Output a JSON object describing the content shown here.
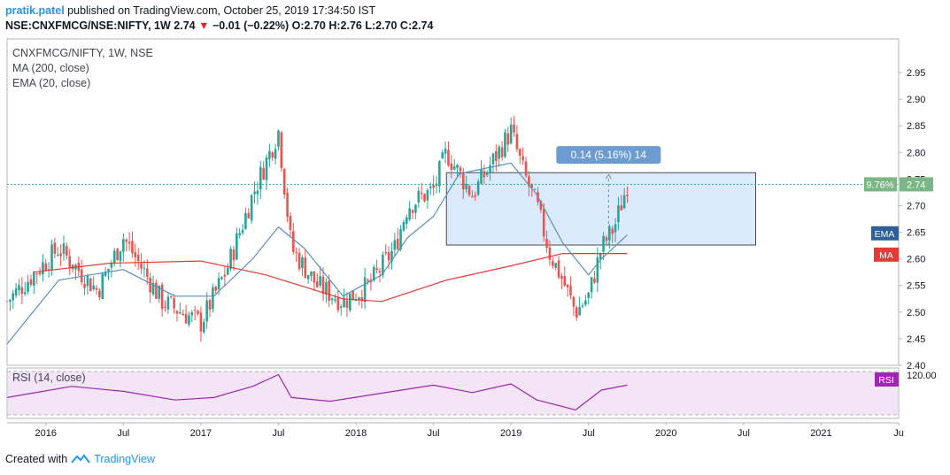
{
  "header": {
    "user": "pratik.patel",
    "published_text": "published on TradingView.com, October 25, 2019 17:34:50 IST",
    "symbol": "NSE:CNXFMCG/NSE:NIFTY, 1W",
    "last": "2.74",
    "change": "−0.01 (−0.22%)",
    "ohlc": "O:2.70 H:2.76 L:2.70 C:2.74"
  },
  "legend": {
    "title": "CNXFMCG/NIFTY, 1W, NSE",
    "ma": "MA (200, close)",
    "ema": "EMA (20, close)",
    "rsi": "RSI (14, close)"
  },
  "footer": {
    "created_with": "Created with",
    "brand": "TradingView"
  },
  "colors": {
    "up": "#26a69a",
    "down": "#ef5350",
    "ema": "#5b8fb9",
    "ma": "#e53935",
    "rsi": "#9c27b0",
    "rsi_band": "#f3e5f5",
    "measure_fill": "#dbeafc",
    "measure_label_bg": "#6b9bd0",
    "price_label_bg": "#7cb687",
    "ema_label_bg": "#2f5f96",
    "ma_label_bg": "#e53935",
    "rsi_label_bg": "#9c27b0"
  },
  "chart_data": {
    "type": "candlestick",
    "price_axis": {
      "ticks": [
        "2.95",
        "2.90",
        "2.85",
        "2.80",
        "2.75",
        "2.70",
        "2.65",
        "2.60",
        "2.55",
        "2.50",
        "2.45",
        "2.40"
      ],
      "range": [
        2.4,
        2.98
      ],
      "last_price_label": "2.74",
      "last_percent_label": "9.76%",
      "ema_label": "EMA",
      "ma_label": "MA"
    },
    "time_axis": {
      "ticks": [
        "2016",
        "Jul",
        "2017",
        "Jul",
        "2018",
        "Jul",
        "2019",
        "Jul",
        "2020",
        "Jul",
        "2021",
        "Ju"
      ],
      "range": [
        "2015-10",
        "2021-07"
      ]
    },
    "series": [
      {
        "name": "MA (200, close)"
      },
      {
        "name": "EMA (20, close)"
      },
      {
        "name": "RSI (14, close)"
      }
    ],
    "rsi_axis": {
      "ticks": [
        "120.00"
      ],
      "label": "RSI"
    },
    "measure": {
      "label": "0.14 (5.16%) 14",
      "from": {
        "date": "2018-08",
        "price": 2.626
      },
      "to": {
        "date": "2019-10",
        "price": 2.762
      }
    },
    "key_points": [
      {
        "date": "2015-10",
        "price": 2.52
      },
      {
        "date": "2016-02",
        "price": 2.62
      },
      {
        "date": "2016-05",
        "price": 2.54
      },
      {
        "date": "2016-07",
        "price": 2.64
      },
      {
        "date": "2016-10",
        "price": 2.52
      },
      {
        "date": "2017-01",
        "price": 2.48
      },
      {
        "date": "2017-03",
        "price": 2.58
      },
      {
        "date": "2017-05",
        "price": 2.72
      },
      {
        "date": "2017-07",
        "price": 2.84
      },
      {
        "date": "2017-08",
        "price": 2.62
      },
      {
        "date": "2017-10",
        "price": 2.55
      },
      {
        "date": "2017-12",
        "price": 2.52
      },
      {
        "date": "2018-02",
        "price": 2.55
      },
      {
        "date": "2018-04",
        "price": 2.62
      },
      {
        "date": "2018-05",
        "price": 2.7
      },
      {
        "date": "2018-07",
        "price": 2.73
      },
      {
        "date": "2018-08",
        "price": 2.8
      },
      {
        "date": "2018-10",
        "price": 2.72
      },
      {
        "date": "2019-01",
        "price": 2.84
      },
      {
        "date": "2019-02",
        "price": 2.76
      },
      {
        "date": "2019-03",
        "price": 2.7
      },
      {
        "date": "2019-04",
        "price": 2.61
      },
      {
        "date": "2019-05",
        "price": 2.56
      },
      {
        "date": "2019-06",
        "price": 2.5
      },
      {
        "date": "2019-07",
        "price": 2.53
      },
      {
        "date": "2019-08",
        "price": 2.62
      },
      {
        "date": "2019-09",
        "price": 2.66
      },
      {
        "date": "2019-10",
        "price": 2.74
      }
    ],
    "ma_points": [
      {
        "date": "2015-12",
        "price": 2.575
      },
      {
        "date": "2016-06",
        "price": 2.592
      },
      {
        "date": "2017-01",
        "price": 2.596
      },
      {
        "date": "2017-06",
        "price": 2.57
      },
      {
        "date": "2017-12",
        "price": 2.525
      },
      {
        "date": "2018-03",
        "price": 2.52
      },
      {
        "date": "2018-08",
        "price": 2.56
      },
      {
        "date": "2019-01",
        "price": 2.587
      },
      {
        "date": "2019-05",
        "price": 2.61
      },
      {
        "date": "2019-10",
        "price": 2.61
      }
    ],
    "ema_points": [
      {
        "date": "2015-10",
        "price": 2.44
      },
      {
        "date": "2016-02",
        "price": 2.56
      },
      {
        "date": "2016-07",
        "price": 2.58
      },
      {
        "date": "2016-11",
        "price": 2.53
      },
      {
        "date": "2017-02",
        "price": 2.53
      },
      {
        "date": "2017-05",
        "price": 2.6
      },
      {
        "date": "2017-07",
        "price": 2.66
      },
      {
        "date": "2017-09",
        "price": 2.62
      },
      {
        "date": "2017-12",
        "price": 2.53
      },
      {
        "date": "2018-03",
        "price": 2.57
      },
      {
        "date": "2018-05",
        "price": 2.64
      },
      {
        "date": "2018-07",
        "price": 2.68
      },
      {
        "date": "2018-09",
        "price": 2.76
      },
      {
        "date": "2019-01",
        "price": 2.78
      },
      {
        "date": "2019-03",
        "price": 2.72
      },
      {
        "date": "2019-05",
        "price": 2.63
      },
      {
        "date": "2019-07",
        "price": 2.57
      },
      {
        "date": "2019-08",
        "price": 2.6
      },
      {
        "date": "2019-10",
        "price": 2.645
      }
    ],
    "rsi_points": [
      {
        "date": "2015-10",
        "value": 48
      },
      {
        "date": "2016-03",
        "value": 66
      },
      {
        "date": "2016-07",
        "value": 58
      },
      {
        "date": "2016-11",
        "value": 44
      },
      {
        "date": "2017-02",
        "value": 48
      },
      {
        "date": "2017-05",
        "value": 66
      },
      {
        "date": "2017-07",
        "value": 85
      },
      {
        "date": "2017-08",
        "value": 48
      },
      {
        "date": "2017-11",
        "value": 42
      },
      {
        "date": "2018-03",
        "value": 55
      },
      {
        "date": "2018-07",
        "value": 68
      },
      {
        "date": "2018-10",
        "value": 56
      },
      {
        "date": "2019-01",
        "value": 70
      },
      {
        "date": "2019-03",
        "value": 44
      },
      {
        "date": "2019-06",
        "value": 28
      },
      {
        "date": "2019-08",
        "value": 60
      },
      {
        "date": "2019-10",
        "value": 68
      }
    ]
  }
}
